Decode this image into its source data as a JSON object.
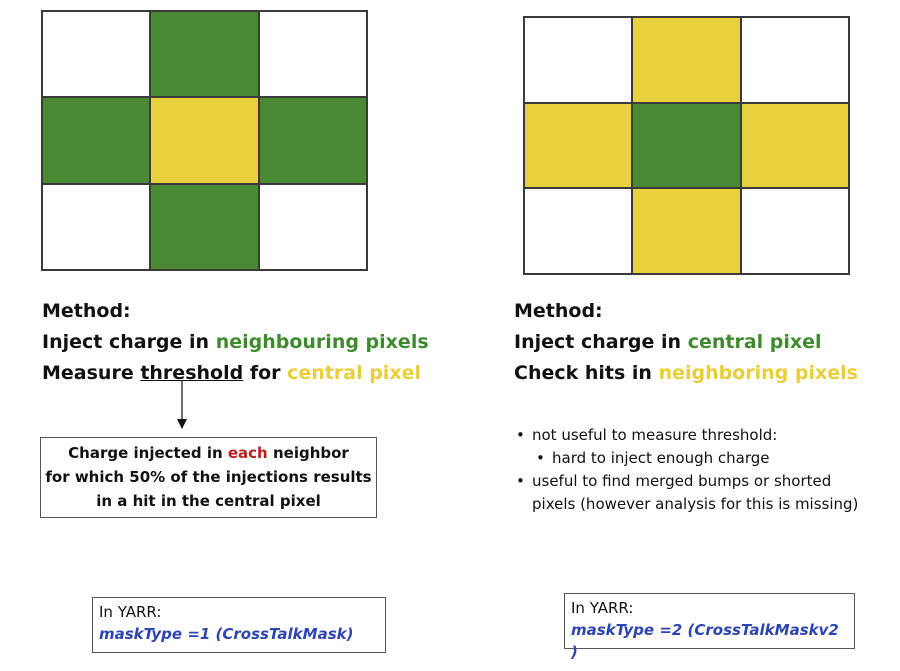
{
  "colors": {
    "green": "#4a8a35",
    "yellow": "#e9d13d",
    "white": "#ffffff",
    "text_green": "#3f8a2e",
    "text_yellow": "#e8cf3a",
    "text_red": "#b52222",
    "text_blue": "#2d45b0"
  },
  "left": {
    "grid": [
      "white",
      "green",
      "white",
      "green",
      "yellow",
      "green",
      "white",
      "green",
      "white"
    ],
    "method": {
      "heading": "Method:",
      "line1_prefix": "Inject charge in ",
      "line1_highlight": "neighbouring pixels",
      "line2_prefix": "Measure ",
      "line2_underlined": "threshold",
      "line2_mid": " for ",
      "line2_highlight": "central pixel"
    },
    "charge_box": {
      "line1_prefix": "Charge injected in ",
      "line1_highlight": "each",
      "line1_suffix": " neighbor",
      "line2": "for which 50% of the injections results",
      "line3": "in a hit in the central pixel"
    },
    "yarr": {
      "label": "In YARR:",
      "mask": "maskType =1 (CrossTalkMask)"
    }
  },
  "right": {
    "grid": [
      "white",
      "yellow",
      "white",
      "yellow",
      "green",
      "yellow",
      "white",
      "yellow",
      "white"
    ],
    "method": {
      "heading": "Method:",
      "line1_prefix": "Inject charge in ",
      "line1_highlight": "central pixel",
      "line2_prefix": "Check hits in ",
      "line2_highlight": "neighboring pixels"
    },
    "bullets": [
      {
        "level": 1,
        "text": "not useful to measure threshold:"
      },
      {
        "level": 2,
        "text": "hard to inject enough charge"
      },
      {
        "level": 1,
        "text": "useful to find merged bumps or shorted"
      },
      {
        "level": 1,
        "text": "pixels (however analysis for this is missing)",
        "continuation": true
      }
    ],
    "yarr": {
      "label": "In YARR:",
      "mask": "maskType =2 (CrossTalkMaskv2 )"
    }
  }
}
